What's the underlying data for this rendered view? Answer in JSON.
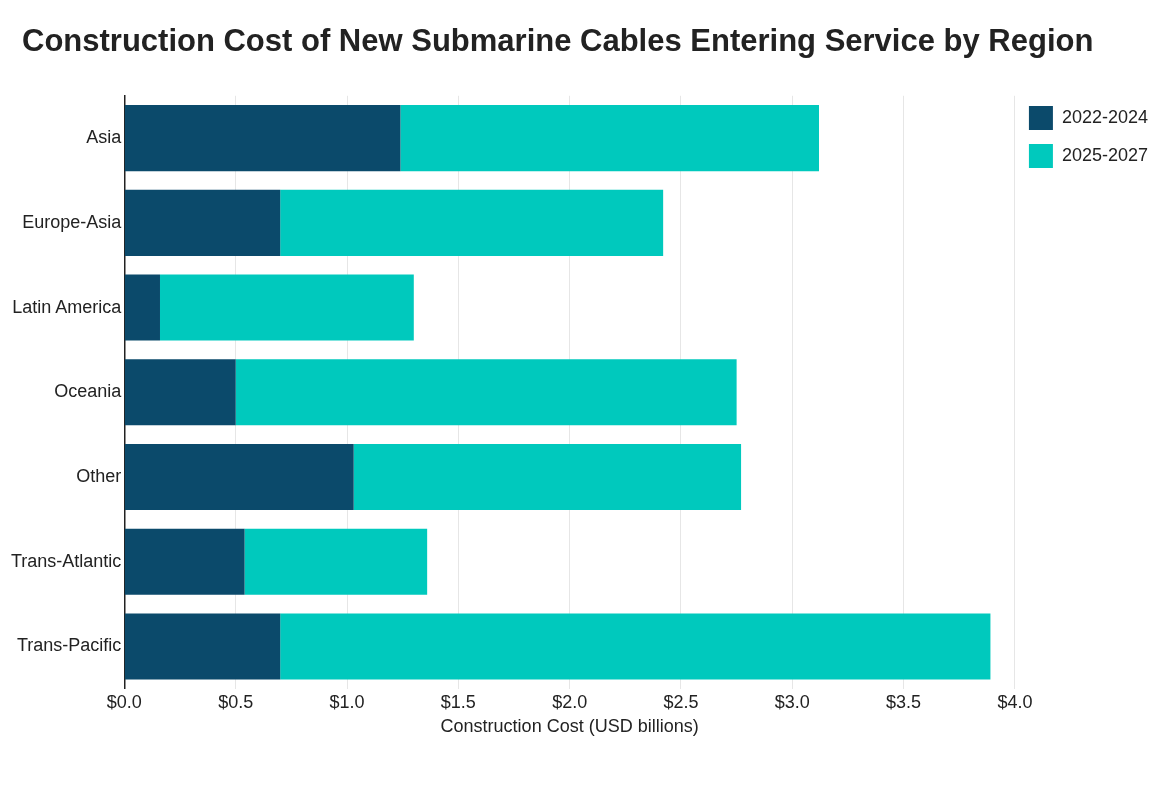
{
  "chart_data": {
    "type": "bar",
    "title": "Construction Cost of New Submarine Cables Entering Service by Region",
    "orientation": "horizontal",
    "stacked": true,
    "categories": [
      "Asia",
      "Europe-Asia",
      "Latin America",
      "Oceania",
      "Other",
      "Trans-Atlantic",
      "Trans-Pacific"
    ],
    "series": [
      {
        "name": "2022-2024",
        "color": "#0b4a6b",
        "values": [
          1.24,
          0.7,
          0.16,
          0.5,
          1.03,
          0.54,
          0.7
        ]
      },
      {
        "name": "2025-2027",
        "color": "#00c9bd",
        "values": [
          1.88,
          1.72,
          1.14,
          2.25,
          1.74,
          0.82,
          3.19
        ]
      }
    ],
    "xlabel": "Construction Cost (USD billions)",
    "xlim": [
      0,
      4
    ],
    "xticks": [
      {
        "value": 0,
        "label": "$0.0"
      },
      {
        "value": 0.5,
        "label": "$0.5"
      },
      {
        "value": 1,
        "label": "$1.0"
      },
      {
        "value": 1.5,
        "label": "$1.5"
      },
      {
        "value": 2,
        "label": "$2.0"
      },
      {
        "value": 2.5,
        "label": "$2.5"
      },
      {
        "value": 3,
        "label": "$3.0"
      },
      {
        "value": 3.5,
        "label": "$3.5"
      },
      {
        "value": 4,
        "label": "$4.0"
      }
    ],
    "grid": "x",
    "legend": "top right"
  }
}
